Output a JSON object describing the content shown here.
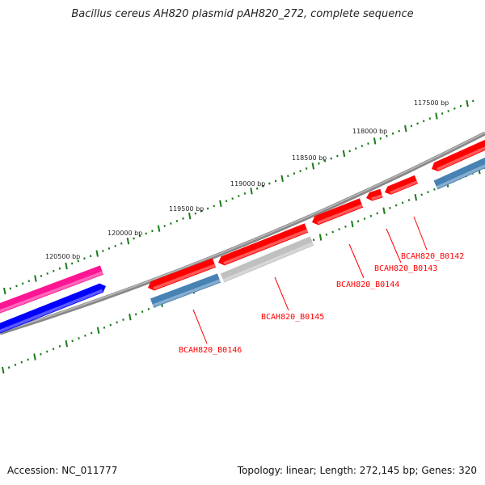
{
  "title": "Bacillus cereus AH820 plasmid pAH820_272, complete sequence",
  "footer": {
    "accession": "Accession: NC_011777",
    "summary": "Topology: linear; Length: 272,145 bp; Genes: 320"
  },
  "scale_labels": [
    "120500 bp",
    "120000 bp",
    "119500 bp",
    "119000 bp",
    "118500 bp",
    "118000 bp",
    "117500 bp"
  ],
  "gene_labels": [
    "BCAH820_B0142",
    "BCAH820_B0143",
    "BCAH820_B0144",
    "BCAH820_B0145",
    "BCAH820_B0146"
  ],
  "colors": {
    "forward": "#ff0000",
    "reverse_blue": "#4682b4",
    "gray": "#c0c0c0",
    "pink": "#ff1493",
    "blue": "#0000ff",
    "ticks": "#1a7a1a",
    "backbone": "#808080"
  }
}
